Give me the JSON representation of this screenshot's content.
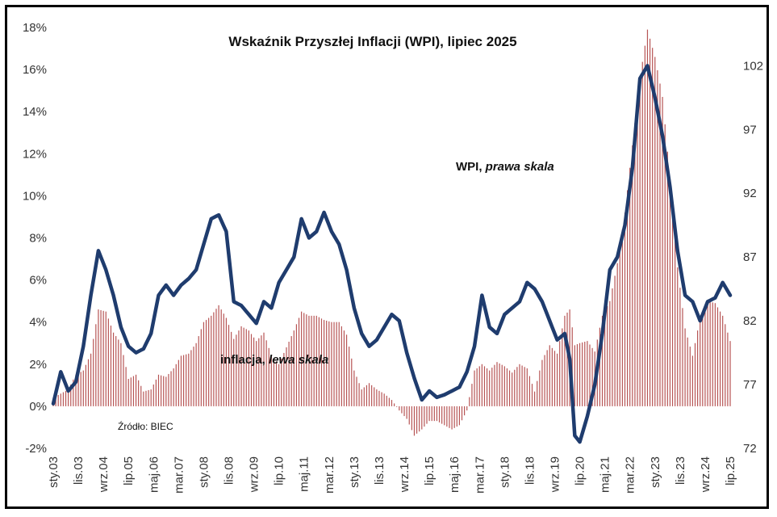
{
  "chart_data": {
    "type": "line",
    "title": "Wskaźnik Przyszłej Inflacji (WPI), lipiec 2025",
    "source": "Źródło: BIEC",
    "grid": false,
    "left_axis": {
      "range": [
        -2,
        18
      ],
      "ticks": [
        "-2%",
        "0%",
        "2%",
        "4%",
        "6%",
        "8%",
        "10%",
        "12%",
        "14%",
        "16%",
        "18%"
      ],
      "tick_values": [
        -2,
        0,
        2,
        4,
        6,
        8,
        10,
        12,
        14,
        16,
        18
      ]
    },
    "right_axis": {
      "range": [
        72,
        105
      ],
      "ticks": [
        "72",
        "77",
        "82",
        "87",
        "92",
        "97",
        "102"
      ],
      "tick_values": [
        72,
        77,
        82,
        87,
        92,
        97,
        102
      ]
    },
    "x_axis": {
      "start": "2003-01",
      "end": "2025-07",
      "tick_labels": [
        "sty.03",
        "lis.03",
        "wrz.04",
        "lip.05",
        "maj.06",
        "mar.07",
        "sty.08",
        "lis.08",
        "wrz.09",
        "lip.10",
        "maj.11",
        "mar.12",
        "sty.13",
        "lis.13",
        "wrz.14",
        "lip.15",
        "maj.16",
        "mar.17",
        "sty.18",
        "lis.18",
        "wrz.19",
        "lip.20",
        "maj.21",
        "mar.22",
        "sty.23",
        "lis.23",
        "wrz.24",
        "lip.25"
      ],
      "tick_dates": [
        "2003-01",
        "2003-11",
        "2004-09",
        "2005-07",
        "2006-05",
        "2007-03",
        "2008-01",
        "2008-11",
        "2009-09",
        "2010-07",
        "2011-05",
        "2012-03",
        "2013-01",
        "2013-11",
        "2014-09",
        "2015-07",
        "2016-05",
        "2017-03",
        "2018-01",
        "2018-11",
        "2019-09",
        "2020-07",
        "2021-05",
        "2022-03",
        "2023-01",
        "2023-11",
        "2024-09",
        "2025-07"
      ]
    },
    "series": [
      {
        "name": "WPI, prawa skala",
        "kind": "line",
        "axis": "right",
        "color": "#1f3c6e",
        "anchors": [
          [
            "2003-01",
            75.5
          ],
          [
            "2003-04",
            78.0
          ],
          [
            "2003-07",
            76.5
          ],
          [
            "2003-10",
            77.2
          ],
          [
            "2004-01",
            80.0
          ],
          [
            "2004-04",
            84.0
          ],
          [
            "2004-07",
            87.5
          ],
          [
            "2004-10",
            86.0
          ],
          [
            "2005-01",
            84.0
          ],
          [
            "2005-04",
            81.5
          ],
          [
            "2005-07",
            80.0
          ],
          [
            "2005-10",
            79.5
          ],
          [
            "2006-01",
            79.8
          ],
          [
            "2006-04",
            81.0
          ],
          [
            "2006-07",
            84.0
          ],
          [
            "2006-10",
            84.8
          ],
          [
            "2007-01",
            84.0
          ],
          [
            "2007-04",
            84.8
          ],
          [
            "2007-07",
            85.3
          ],
          [
            "2007-10",
            86.0
          ],
          [
            "2008-01",
            88.0
          ],
          [
            "2008-04",
            90.0
          ],
          [
            "2008-07",
            90.3
          ],
          [
            "2008-10",
            89.0
          ],
          [
            "2009-01",
            83.5
          ],
          [
            "2009-04",
            83.2
          ],
          [
            "2009-07",
            82.5
          ],
          [
            "2009-10",
            81.8
          ],
          [
            "2010-01",
            83.5
          ],
          [
            "2010-04",
            83.0
          ],
          [
            "2010-07",
            85.0
          ],
          [
            "2010-10",
            86.0
          ],
          [
            "2011-01",
            87.0
          ],
          [
            "2011-04",
            90.0
          ],
          [
            "2011-07",
            88.5
          ],
          [
            "2011-10",
            89.0
          ],
          [
            "2012-01",
            90.5
          ],
          [
            "2012-04",
            89.0
          ],
          [
            "2012-07",
            88.0
          ],
          [
            "2012-10",
            86.0
          ],
          [
            "2013-01",
            83.0
          ],
          [
            "2013-04",
            81.0
          ],
          [
            "2013-07",
            80.0
          ],
          [
            "2013-10",
            80.5
          ],
          [
            "2014-01",
            81.5
          ],
          [
            "2014-04",
            82.5
          ],
          [
            "2014-07",
            82.0
          ],
          [
            "2014-10",
            79.5
          ],
          [
            "2015-01",
            77.5
          ],
          [
            "2015-04",
            75.8
          ],
          [
            "2015-07",
            76.5
          ],
          [
            "2015-10",
            76.0
          ],
          [
            "2016-01",
            76.2
          ],
          [
            "2016-04",
            76.5
          ],
          [
            "2016-07",
            76.8
          ],
          [
            "2016-10",
            78.0
          ],
          [
            "2017-01",
            80.0
          ],
          [
            "2017-04",
            84.0
          ],
          [
            "2017-07",
            81.5
          ],
          [
            "2017-10",
            81.0
          ],
          [
            "2018-01",
            82.5
          ],
          [
            "2018-04",
            83.0
          ],
          [
            "2018-07",
            83.5
          ],
          [
            "2018-10",
            85.0
          ],
          [
            "2019-01",
            84.5
          ],
          [
            "2019-04",
            83.5
          ],
          [
            "2019-07",
            82.0
          ],
          [
            "2019-10",
            80.5
          ],
          [
            "2020-01",
            81.0
          ],
          [
            "2020-03",
            79.0
          ],
          [
            "2020-05",
            73.0
          ],
          [
            "2020-07",
            72.5
          ],
          [
            "2020-10",
            74.5
          ],
          [
            "2021-01",
            77.0
          ],
          [
            "2021-04",
            81.0
          ],
          [
            "2021-07",
            86.0
          ],
          [
            "2021-10",
            87.0
          ],
          [
            "2022-01",
            89.5
          ],
          [
            "2022-04",
            94.0
          ],
          [
            "2022-07",
            101.0
          ],
          [
            "2022-10",
            102.0
          ],
          [
            "2023-01",
            99.5
          ],
          [
            "2023-04",
            96.5
          ],
          [
            "2023-07",
            92.5
          ],
          [
            "2023-10",
            87.5
          ],
          [
            "2024-01",
            84.0
          ],
          [
            "2024-04",
            83.5
          ],
          [
            "2024-07",
            82.0
          ],
          [
            "2024-10",
            83.5
          ],
          [
            "2025-01",
            83.8
          ],
          [
            "2025-04",
            85.0
          ],
          [
            "2025-07",
            84.0
          ]
        ]
      },
      {
        "name": "inflacja, lewa skala",
        "kind": "bar",
        "axis": "left",
        "color": "#a52a2a",
        "anchors": [
          [
            "2003-01",
            0.4
          ],
          [
            "2003-04",
            0.6
          ],
          [
            "2003-07",
            0.8
          ],
          [
            "2003-10",
            1.5
          ],
          [
            "2004-01",
            1.7
          ],
          [
            "2004-04",
            2.5
          ],
          [
            "2004-07",
            4.6
          ],
          [
            "2004-10",
            4.5
          ],
          [
            "2005-01",
            3.5
          ],
          [
            "2005-04",
            3.0
          ],
          [
            "2005-07",
            1.3
          ],
          [
            "2005-10",
            1.5
          ],
          [
            "2006-01",
            0.7
          ],
          [
            "2006-04",
            0.8
          ],
          [
            "2006-07",
            1.5
          ],
          [
            "2006-10",
            1.4
          ],
          [
            "2007-01",
            1.8
          ],
          [
            "2007-04",
            2.4
          ],
          [
            "2007-07",
            2.5
          ],
          [
            "2007-10",
            3.0
          ],
          [
            "2008-01",
            4.0
          ],
          [
            "2008-04",
            4.3
          ],
          [
            "2008-07",
            4.8
          ],
          [
            "2008-10",
            4.2
          ],
          [
            "2009-01",
            3.2
          ],
          [
            "2009-04",
            3.8
          ],
          [
            "2009-07",
            3.6
          ],
          [
            "2009-10",
            3.1
          ],
          [
            "2010-01",
            3.5
          ],
          [
            "2010-04",
            2.4
          ],
          [
            "2010-07",
            2.0
          ],
          [
            "2010-10",
            2.8
          ],
          [
            "2011-01",
            3.6
          ],
          [
            "2011-04",
            4.5
          ],
          [
            "2011-07",
            4.3
          ],
          [
            "2011-10",
            4.3
          ],
          [
            "2012-01",
            4.1
          ],
          [
            "2012-04",
            4.0
          ],
          [
            "2012-07",
            4.0
          ],
          [
            "2012-10",
            3.4
          ],
          [
            "2013-01",
            1.7
          ],
          [
            "2013-04",
            0.8
          ],
          [
            "2013-07",
            1.1
          ],
          [
            "2013-10",
            0.8
          ],
          [
            "2014-01",
            0.6
          ],
          [
            "2014-04",
            0.3
          ],
          [
            "2014-07",
            -0.2
          ],
          [
            "2014-10",
            -0.6
          ],
          [
            "2015-01",
            -1.4
          ],
          [
            "2015-04",
            -1.1
          ],
          [
            "2015-07",
            -0.7
          ],
          [
            "2015-10",
            -0.7
          ],
          [
            "2016-01",
            -0.9
          ],
          [
            "2016-04",
            -1.1
          ],
          [
            "2016-07",
            -0.9
          ],
          [
            "2016-10",
            -0.2
          ],
          [
            "2017-01",
            1.7
          ],
          [
            "2017-04",
            2.0
          ],
          [
            "2017-07",
            1.7
          ],
          [
            "2017-10",
            2.1
          ],
          [
            "2018-01",
            1.9
          ],
          [
            "2018-04",
            1.6
          ],
          [
            "2018-07",
            2.0
          ],
          [
            "2018-10",
            1.8
          ],
          [
            "2019-01",
            0.7
          ],
          [
            "2019-04",
            2.2
          ],
          [
            "2019-07",
            2.9
          ],
          [
            "2019-10",
            2.5
          ],
          [
            "2020-01",
            4.3
          ],
          [
            "2020-03",
            4.6
          ],
          [
            "2020-05",
            2.9
          ],
          [
            "2020-07",
            3.0
          ],
          [
            "2020-10",
            3.1
          ],
          [
            "2021-01",
            2.6
          ],
          [
            "2021-04",
            4.3
          ],
          [
            "2021-07",
            5.0
          ],
          [
            "2021-10",
            6.8
          ],
          [
            "2022-01",
            9.2
          ],
          [
            "2022-04",
            12.4
          ],
          [
            "2022-07",
            15.6
          ],
          [
            "2022-10",
            17.9
          ],
          [
            "2023-01",
            16.6
          ],
          [
            "2023-04",
            14.7
          ],
          [
            "2023-07",
            10.8
          ],
          [
            "2023-10",
            6.6
          ],
          [
            "2024-01",
            3.7
          ],
          [
            "2024-04",
            2.4
          ],
          [
            "2024-07",
            4.2
          ],
          [
            "2024-10",
            5.0
          ],
          [
            "2025-01",
            4.9
          ],
          [
            "2025-04",
            4.3
          ],
          [
            "2025-07",
            3.1
          ]
        ]
      }
    ],
    "annotations": [
      {
        "text_bold": "WPI, ",
        "text_italic": "prawa skala"
      },
      {
        "text_bold": "inflacja, ",
        "text_italic": "lewa skala"
      }
    ]
  }
}
